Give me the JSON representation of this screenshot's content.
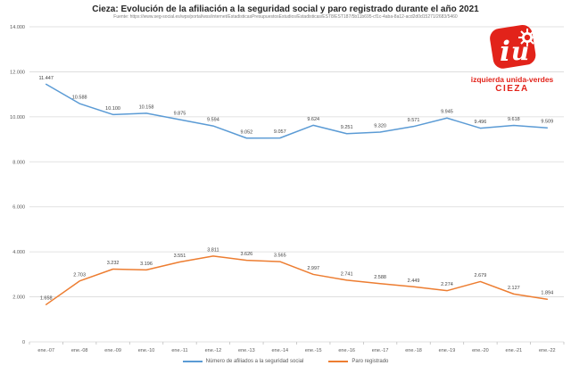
{
  "header": {
    "title": "Cieza: Evolución de la afiliación a la seguridad social y paro registrado durante el año 2021",
    "source": "Fuente: https://www.seg-social.es/wps/portal/wss/internet/EstadisticasPresupuestosEstudios/Estadisticas/EST8/EST187/5b11b695-cf1c-4aba-8a12-acd2d0d15271/2683/5460"
  },
  "logo": {
    "symbol": "iu",
    "org": "izquierda unida-verdes",
    "city": "CIEZA",
    "color": "#e2231a"
  },
  "chart_data": {
    "type": "line",
    "title": "Cieza: Evolución de la afiliación a la seguridad social y paro registrado durante el año 2021",
    "xlabel": "",
    "ylabel": "",
    "categories": [
      "ene.-07",
      "ene.-08",
      "ene.-09",
      "ene.-10",
      "ene.-11",
      "ene.-12",
      "ene.-13",
      "ene.-14",
      "ene.-15",
      "ene.-16",
      "ene.-17",
      "ene.-18",
      "ene.-19",
      "ene.-20",
      "ene.-21",
      "ene.-22"
    ],
    "series": [
      {
        "name": "Número de afiliados a la seguridad social",
        "color": "#5b9bd5",
        "values": [
          11447,
          10588,
          10100,
          10158,
          9875,
          9594,
          9052,
          9057,
          9624,
          9251,
          9320,
          9571,
          9945,
          9496,
          9618,
          9509
        ]
      },
      {
        "name": "Paro registrado",
        "color": "#ed7d31",
        "values": [
          1658,
          2703,
          3232,
          3196,
          3551,
          3811,
          3626,
          3565,
          2997,
          2741,
          2588,
          2449,
          2274,
          2679,
          2127,
          1894
        ]
      }
    ],
    "ylim": [
      0,
      14000
    ],
    "ytick_step": 2000,
    "grid": true,
    "legend_position": "bottom",
    "gridline_color": "#d9d9d9",
    "axis_text_color": "#595959",
    "data_label_color": "#404040"
  }
}
